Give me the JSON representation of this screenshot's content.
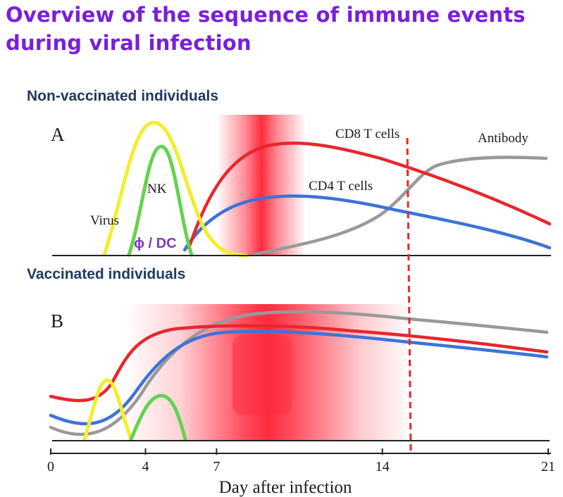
{
  "title": {
    "line1": "Overview of the sequence of immune events",
    "line2": "during viral infection"
  },
  "panels": {
    "a": {
      "section_label": "Non-vaccinated individuals",
      "letter": "A"
    },
    "b": {
      "section_label": "Vaccinated individuals",
      "letter": "B"
    }
  },
  "curve_labels": {
    "virus": "Virus",
    "nk": "NK",
    "macrophage_dc": "ϕ / DC",
    "cd8": "CD8 T cells",
    "cd4": "CD4 T cells",
    "antibody": "Antibody"
  },
  "colors": {
    "virus": "#f2ee2a",
    "nk": "#63d34f",
    "macrophage_dc": "#7b3bbf",
    "cd8": "#e8262d",
    "cd4": "#3d73d8",
    "antibody": "#999999",
    "highlight": "#ff2b3f",
    "day14_marker": "#e8262d"
  },
  "chart_data": {
    "type": "line",
    "xlabel": "Day after infection",
    "x_ticks": [
      0,
      4,
      7,
      14,
      21
    ],
    "xlim": [
      0,
      21
    ],
    "marker_line_day": 14
  }
}
